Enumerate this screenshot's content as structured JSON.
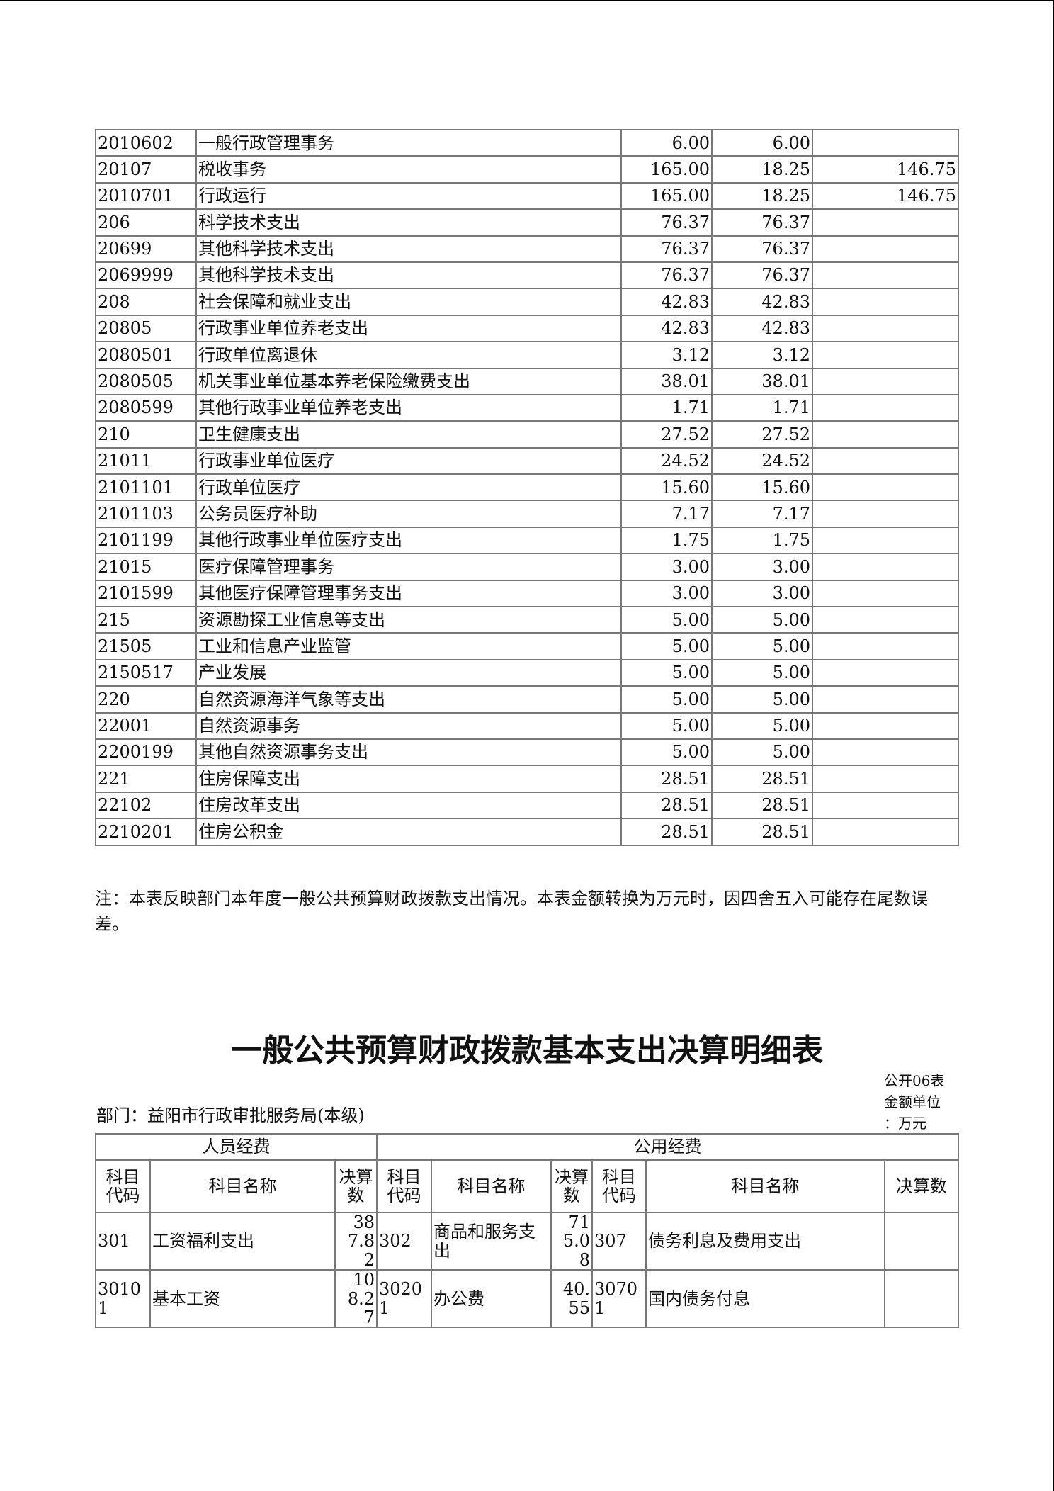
{
  "table1": {
    "rows": [
      [
        "2010602",
        "一般行政管理事务",
        "6.00",
        "6.00",
        ""
      ],
      [
        "20107",
        "税收事务",
        "165.00",
        "18.25",
        "146.75"
      ],
      [
        "2010701",
        "行政运行",
        "165.00",
        "18.25",
        "146.75"
      ],
      [
        "206",
        "科学技术支出",
        "76.37",
        "76.37",
        ""
      ],
      [
        "20699",
        "其他科学技术支出",
        "76.37",
        "76.37",
        ""
      ],
      [
        "2069999",
        "其他科学技术支出",
        "76.37",
        "76.37",
        ""
      ],
      [
        "208",
        "社会保障和就业支出",
        "42.83",
        "42.83",
        ""
      ],
      [
        "20805",
        "行政事业单位养老支出",
        "42.83",
        "42.83",
        ""
      ],
      [
        "2080501",
        "行政单位离退休",
        "3.12",
        "3.12",
        ""
      ],
      [
        "2080505",
        "机关事业单位基本养老保险缴费支出",
        "38.01",
        "38.01",
        ""
      ],
      [
        "2080599",
        "其他行政事业单位养老支出",
        "1.71",
        "1.71",
        ""
      ],
      [
        "210",
        "卫生健康支出",
        "27.52",
        "27.52",
        ""
      ],
      [
        "21011",
        "行政事业单位医疗",
        "24.52",
        "24.52",
        ""
      ],
      [
        "2101101",
        "行政单位医疗",
        "15.60",
        "15.60",
        ""
      ],
      [
        "2101103",
        "公务员医疗补助",
        "7.17",
        "7.17",
        ""
      ],
      [
        "2101199",
        "其他行政事业单位医疗支出",
        "1.75",
        "1.75",
        ""
      ],
      [
        "21015",
        "医疗保障管理事务",
        "3.00",
        "3.00",
        ""
      ],
      [
        "2101599",
        "其他医疗保障管理事务支出",
        "3.00",
        "3.00",
        ""
      ],
      [
        "215",
        "资源勘探工业信息等支出",
        "5.00",
        "5.00",
        ""
      ],
      [
        "21505",
        "工业和信息产业监管",
        "5.00",
        "5.00",
        ""
      ],
      [
        "2150517",
        "产业发展",
        "5.00",
        "5.00",
        ""
      ],
      [
        "220",
        "自然资源海洋气象等支出",
        "5.00",
        "5.00",
        ""
      ],
      [
        "22001",
        "自然资源事务",
        "5.00",
        "5.00",
        ""
      ],
      [
        "2200199",
        "其他自然资源事务支出",
        "5.00",
        "5.00",
        ""
      ],
      [
        "221",
        "住房保障支出",
        "28.51",
        "28.51",
        ""
      ],
      [
        "22102",
        "住房改革支出",
        "28.51",
        "28.51",
        ""
      ],
      [
        "2210201",
        "住房公积金",
        "28.51",
        "28.51",
        ""
      ]
    ],
    "note": "注：本表反映部门本年度一般公共预算财政拨款支出情况。本表金额转换为万元时，因四舍五入可能存在尾数误差。"
  },
  "section2": {
    "title": "一般公共预算财政拨款基本支出决算明细表",
    "table_no": "公开06表",
    "unit_line1": "金额单位",
    "unit_line2": "：万元",
    "department": "部门：益阳市行政审批服务局(本级)",
    "group_headers": [
      "人员经费",
      "公用经费"
    ],
    "headers": [
      "科目代码",
      "科目名称",
      "决算数",
      "科目代码",
      "科目名称",
      "决算数",
      "科目代码",
      "科目名称",
      "决算数"
    ],
    "rows": [
      [
        "301",
        "工资福利支出",
        "387.82",
        "302",
        "商品和服务支出",
        "715.08",
        "307",
        "债务利息及费用支出",
        ""
      ],
      [
        "30101",
        "基本工资",
        "108.27",
        "30201",
        "办公费",
        "40.55",
        "30701",
        "国内债务付息",
        ""
      ]
    ]
  }
}
